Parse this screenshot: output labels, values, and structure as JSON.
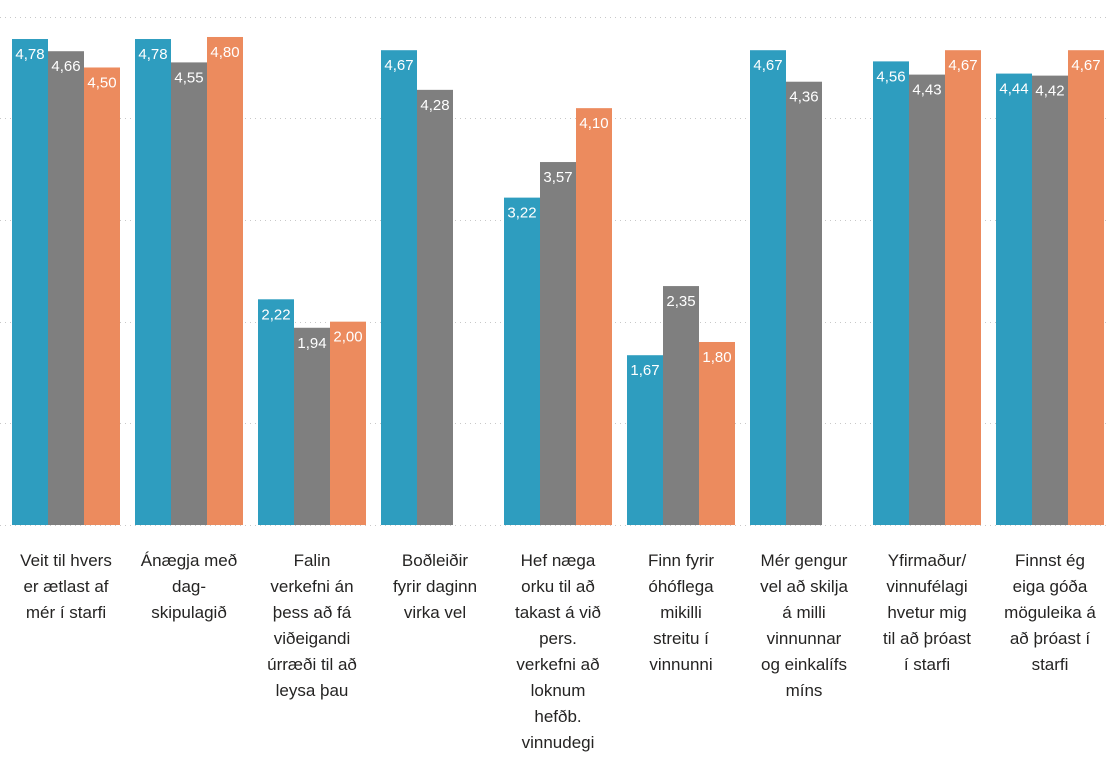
{
  "chart_data": {
    "type": "bar",
    "ylim": [
      0,
      5
    ],
    "grid": true,
    "colors": {
      "series_1": "#2e9dbf",
      "series_2": "#7f7f7f",
      "series_3": "#ec8b5e"
    },
    "categories": [
      [
        "Veit til hvers",
        "er ætlast af",
        "mér í starfi"
      ],
      [
        "Ánægja með",
        "dag-",
        "skipulagið"
      ],
      [
        "Falin",
        "verkefni án",
        "þess að fá",
        "viðeigandi",
        "úrræði til að",
        "leysa þau"
      ],
      [
        "Boðleiðir",
        "fyrir daginn",
        "virka vel"
      ],
      [
        "Hef næga",
        "orku til að",
        "takast á við",
        "pers.",
        "verkefni að",
        "loknum",
        "hefðb.",
        "vinnudegi"
      ],
      [
        "Finn fyrir",
        "óhóflega",
        "mikilli",
        "streitu í",
        "vinnunni"
      ],
      [
        "Mér gengur",
        "vel að skilja",
        "á milli",
        "vinnunnar",
        "og einkalífs",
        "míns"
      ],
      [
        "Yfirmaður/",
        "vinnufélagi",
        "hvetur mig",
        "til að þróast",
        "í starfi"
      ],
      [
        "Finnst ég",
        "eiga góða",
        "möguleika á",
        "að þróast í",
        "starfi"
      ]
    ],
    "series": [
      {
        "values": [
          4.78,
          4.78,
          2.22,
          4.67,
          3.22,
          1.67,
          4.67,
          4.56,
          4.44
        ],
        "labels": [
          "4,78",
          "4,78",
          "2,22",
          "4,67",
          "3,22",
          "1,67",
          "4,67",
          "4,56",
          "4,44"
        ]
      },
      {
        "values": [
          4.66,
          4.55,
          1.94,
          4.28,
          3.57,
          2.35,
          4.36,
          4.43,
          4.42
        ],
        "labels": [
          "4,66",
          "4,55",
          "1,94",
          "4,28",
          "3,57",
          "2,35",
          "4,36",
          "4,43",
          "4,42"
        ]
      },
      {
        "values": [
          4.5,
          4.8,
          2.0,
          null,
          4.1,
          1.8,
          null,
          4.67,
          4.67
        ],
        "labels": [
          "4,50",
          "4,80",
          "2,00",
          "",
          "4,10",
          "1,80",
          "",
          "4,67",
          "4,67"
        ]
      }
    ]
  }
}
